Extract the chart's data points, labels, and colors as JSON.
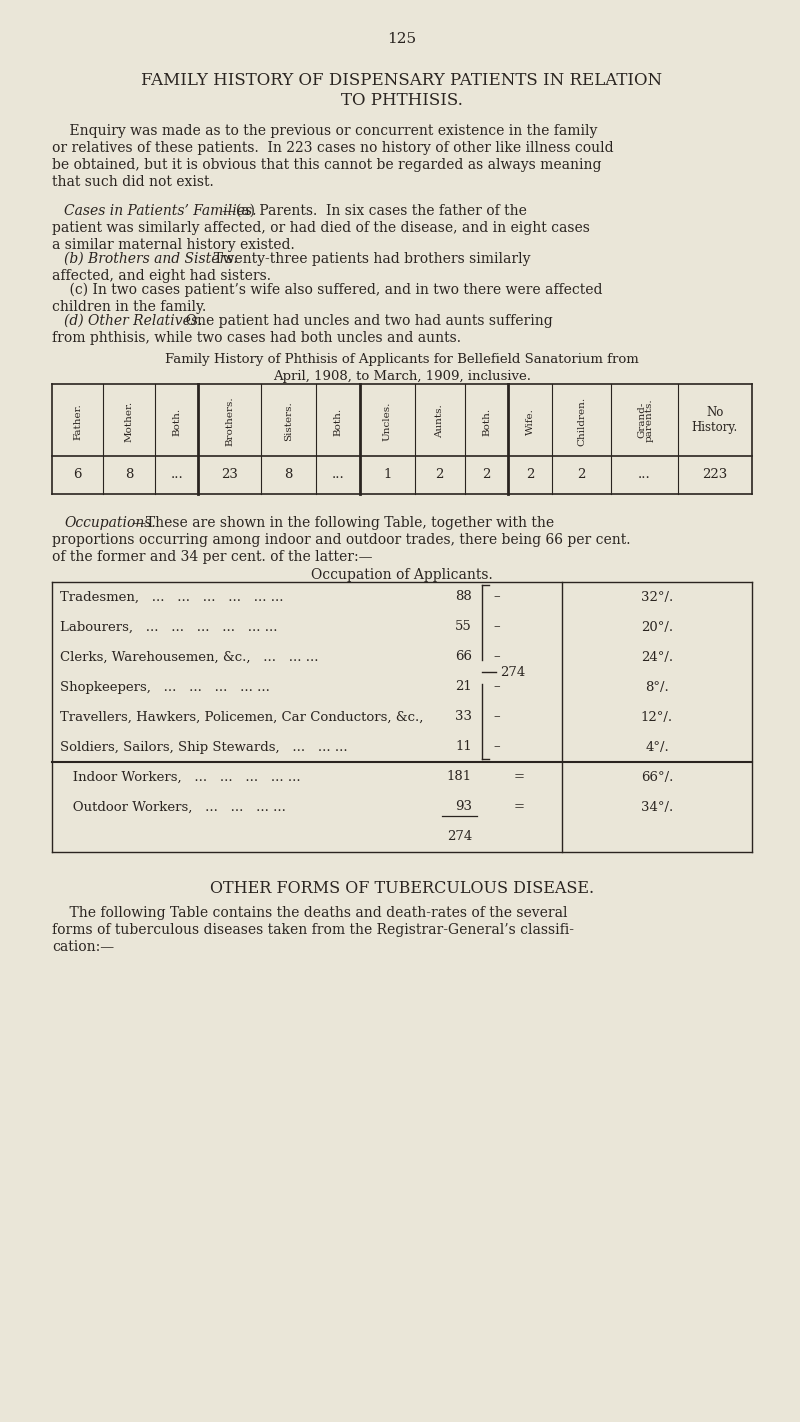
{
  "bg_color": "#eae6d8",
  "text_color": "#2a2420",
  "page_number": "125",
  "title1": "FAMILY HISTORY OF DISPENSARY PATIENTS IN RELATION",
  "title2": "TO PHTHISIS.",
  "para1_lines": [
    "    Enquiry was made as to the previous or concurrent existence in the family",
    "or relatives of these patients.  In 223 cases no history of other like illness could",
    "be obtained, but it is obvious that this cannot be regarded as always meaning",
    "that such did not exist."
  ],
  "para2_italic": "Cases in Patients’ Families.",
  "para2_rest": "—(a) Parents.  In six cases the father of the",
  "para2_rest2": "patient was similarly affected, or had died of the disease, and in eight cases",
  "para2_rest3": "a similar maternal history existed.",
  "para3_italic": "(b) Brothers and Sisters.",
  "para3_rest": "  Twenty-three patients had brothers similarly",
  "para3_rest2": "affected, and eight had sisters.",
  "para4_line1": "    (c) In two cases patient’s wife also suffered, and in two there were affected",
  "para4_line2": "children in the family.",
  "para5_italic": "(d) Other Relatives.",
  "para5_rest": "  One patient had uncles and two had aunts suffering",
  "para5_rest2": "from phthisis, while two cases had both uncles and aunts.",
  "table1_cap1": "Family History of Phthisis of Applicants for Bellefield Sanatorium from",
  "table1_cap2": "April, 1908, to March, 1909, inclusive.",
  "table1_headers": [
    "Father.",
    "Mother.",
    "Both.",
    "Brothers.",
    "Sisters.",
    "Both.",
    "Uncles.",
    "Aunts.",
    "Both.",
    "Wife.",
    "Children.",
    "Grand-\nparents.",
    "No\nHistory."
  ],
  "table1_values": [
    "6",
    "8",
    "...",
    "23",
    "8",
    "...",
    "1",
    "2",
    "2",
    "2",
    "2",
    "...",
    "223"
  ],
  "thick_after_cols": [
    2,
    5,
    8
  ],
  "occ_italic": "Occupations.",
  "occ_rest": "—These are shown in the following Table, together with the",
  "occ_rest2": "proportions occurring among indoor and outdoor trades, there being 66 per cent.",
  "occ_rest3": "of the former and 34 per cent. of the latter:—",
  "table2_title": "Occupation of Applicants.",
  "table2_rows": [
    {
      "label": "Tradesmen,   ...   ...   ...   ...   ... ...",
      "num": "88",
      "pct": "32°/."
    },
    {
      "label": "Labourers,   ...   ...   ...   ...   ... ...",
      "num": "55",
      "pct": "20°/."
    },
    {
      "label": "Clerks, Warehousemen, &c.,   ...   ... ...",
      "num": "66",
      "pct": "24°/."
    },
    {
      "label": "Shopkeepers,   ...   ...   ...   ... ...",
      "num": "21",
      "pct": "8°/."
    },
    {
      "label": "Travellers, Hawkers, Policemen, Car Conductors, &c.,",
      "num": "33",
      "pct": "12°/."
    },
    {
      "label": "Soldiers, Sailors, Ship Stewards,   ...   ... ...",
      "num": "11",
      "pct": "4°/."
    }
  ],
  "table2_summary": [
    {
      "label": "   Indoor Workers,   ...   ...   ...   ... ...",
      "num": "181",
      "eq": "=",
      "pct": "66°/."
    },
    {
      "label": "   Outdoor Workers,   ...   ...   ... ...",
      "num": "93",
      "eq": "=",
      "pct": "34°/."
    },
    {
      "label": "",
      "num": "274",
      "eq": "",
      "pct": ""
    }
  ],
  "section2_title": "OTHER FORMS OF TUBERCULOUS DISEASE.",
  "section2_lines": [
    "    The following Table contains the deaths and death-rates of the several",
    "forms of tuberculous diseases taken from the Registrar-General’s classifi-",
    "cation:—"
  ]
}
